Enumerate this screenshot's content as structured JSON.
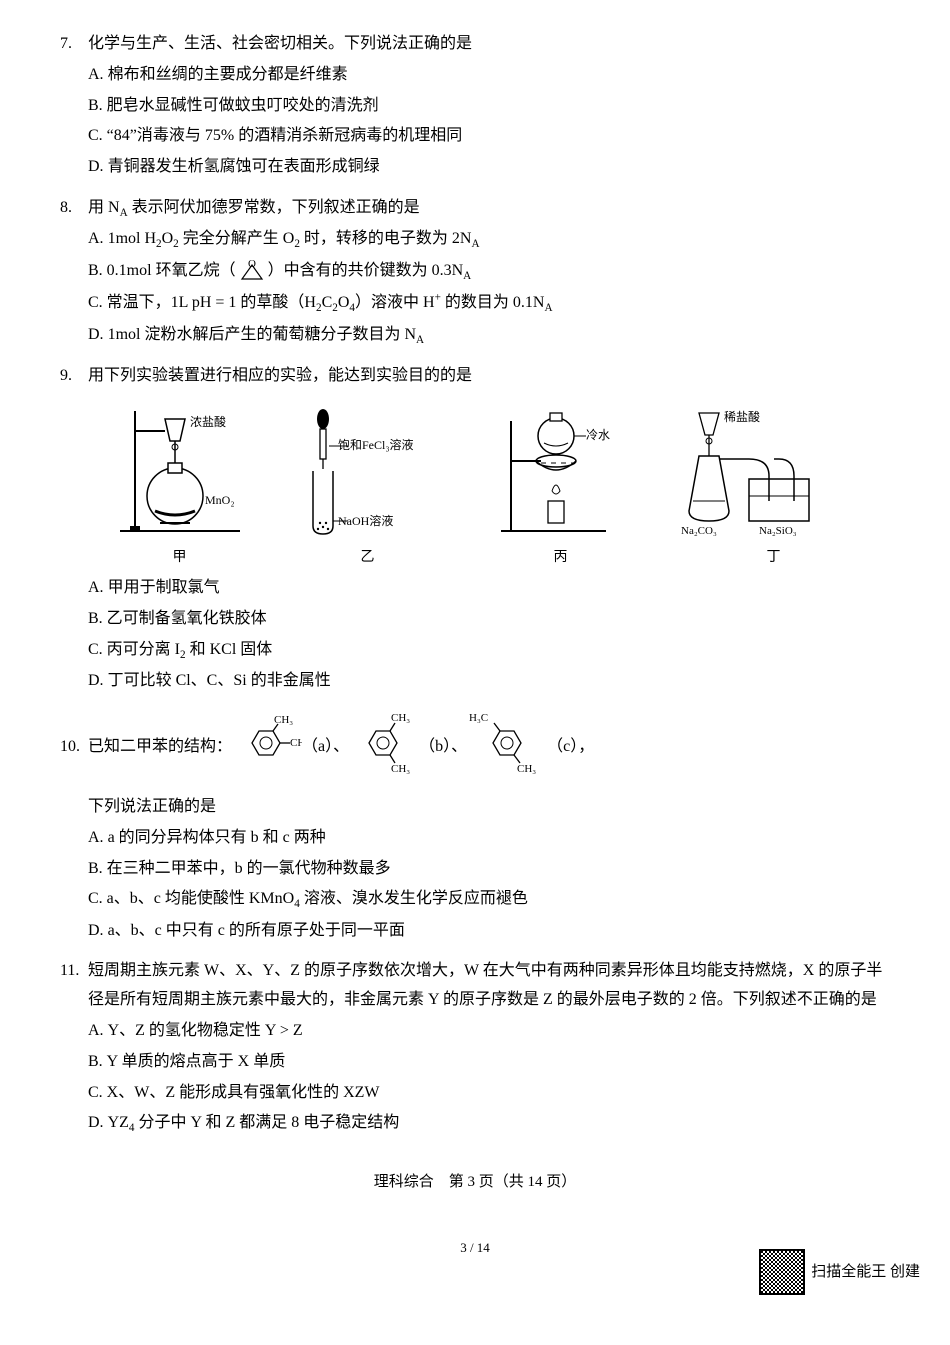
{
  "questions": [
    {
      "num": "7.",
      "stem": "化学与生产、生活、社会密切相关。下列说法正确的是",
      "options": [
        {
          "label": "A.",
          "text": "棉布和丝绸的主要成分都是纤维素"
        },
        {
          "label": "B.",
          "text": "肥皂水显碱性可做蚊虫叮咬处的清洗剂"
        },
        {
          "label": "C.",
          "text": "“84”消毒液与 75% 的酒精消杀新冠病毒的机理相同"
        },
        {
          "label": "D.",
          "text": "青铜器发生析氢腐蚀可在表面形成铜绿"
        }
      ]
    },
    {
      "num": "8.",
      "stem_prefix": "用 N",
      "stem_sub": "A",
      "stem_suffix": " 表示阿伏加德罗常数，下列叙述正确的是",
      "options_html": true,
      "options": [
        {
          "label": "A.",
          "html": "1mol H<sub>2</sub>O<sub>2</sub> 完全分解产生 O<sub>2</sub> 时，转移的电子数为 2N<sub>A</sub>"
        },
        {
          "label": "B.",
          "html": "0.1mol 环氧乙烷（<svg class='inline-svg' width='32' height='24'><polygon points='6,20 26,20 16,6' fill='none' stroke='#000' stroke-width='1.2'/><text x='12' y='8' font-size='11'>O</text></svg>）中含有的共价键数为 0.3N<sub>A</sub>"
        },
        {
          "label": "C.",
          "html": "常温下，1L pH = 1 的草酸（H<sub>2</sub>C<sub>2</sub>O<sub>4</sub>）溶液中 H<sup>+</sup> 的数目为 0.1N<sub>A</sub>"
        },
        {
          "label": "D.",
          "html": "1mol 淀粉水解后产生的葡萄糖分子数目为 N<sub>A</sub>"
        }
      ]
    },
    {
      "num": "9.",
      "stem": "用下列实验装置进行相应的实验，能达到实验目的的是",
      "diagrams": [
        {
          "caption": "甲",
          "labels": {
            "top": "浓盐酸",
            "bottom": "MnO₂"
          }
        },
        {
          "caption": "乙",
          "labels": {
            "top": "饱和FeCl₃溶液",
            "bottom": "NaOH溶液"
          }
        },
        {
          "caption": "丙",
          "labels": {
            "right": "冷水"
          }
        },
        {
          "caption": "丁",
          "labels": {
            "top": "稀盐酸",
            "bottom_left": "Na₂CO₃",
            "bottom_right": "Na₂SiO₃"
          }
        }
      ],
      "options": [
        {
          "label": "A.",
          "text": "甲用于制取氯气"
        },
        {
          "label": "B.",
          "text": "乙可制备氢氧化铁胶体"
        },
        {
          "label": "C.",
          "html": "丙可分离 I<sub>2</sub> 和 KCl 固体"
        },
        {
          "label": "D.",
          "text": "丁可比较 Cl、C、Si 的非金属性"
        }
      ]
    },
    {
      "num": "10.",
      "stem_pre": "已知二甲苯的结构：",
      "struct_labels": [
        "（a）、",
        "（b）、",
        "（c），"
      ],
      "ch3": "CH₃",
      "h3c": "H₃C",
      "followup": "下列说法正确的是",
      "options": [
        {
          "label": "A.",
          "text": "a 的同分异构体只有 b 和 c 两种"
        },
        {
          "label": "B.",
          "text": "在三种二甲苯中，b 的一氯代物种数最多"
        },
        {
          "label": "C.",
          "html": "a、b、c 均能使酸性 KMnO<sub>4</sub> 溶液、溴水发生化学反应而褪色"
        },
        {
          "label": "D.",
          "text": "a、b、c 中只有 c 的所有原子处于同一平面"
        }
      ]
    },
    {
      "num": "11.",
      "stem": "短周期主族元素 W、X、Y、Z 的原子序数依次增大，W 在大气中有两种同素异形体且均能支持燃烧，X 的原子半径是所有短周期主族元素中最大的，非金属元素 Y 的原子序数是 Z 的最外层电子数的 2 倍。下列叙述不正确的是",
      "options": [
        {
          "label": "A.",
          "text": "Y、Z 的氢化物稳定性 Y > Z"
        },
        {
          "label": "B.",
          "text": "Y 单质的熔点高于 X 单质"
        },
        {
          "label": "C.",
          "text": "X、W、Z 能形成具有强氧化性的 XZW"
        },
        {
          "label": "D.",
          "html": "YZ<sub>4</sub> 分子中 Y 和 Z 都满足 8 电子稳定结构"
        }
      ]
    }
  ],
  "footer": "理科综合　第 3 页（共 14 页）",
  "page_indicator": "3 / 14",
  "scan_credit": "扫描全能王 创建"
}
